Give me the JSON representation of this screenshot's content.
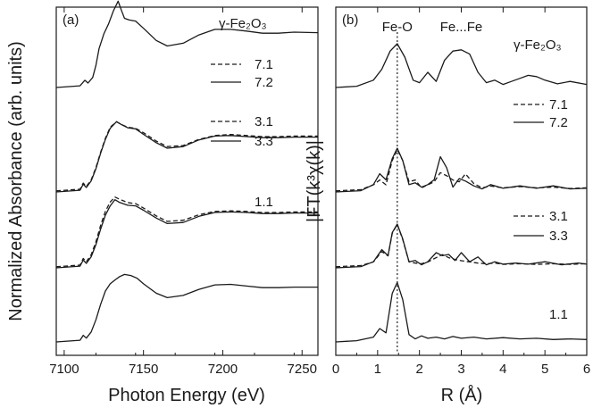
{
  "chart_data": [
    {
      "panel_label": "(a)",
      "type": "line",
      "xlabel": "Photon Energy (eV)",
      "ylabel": "Normalized Absorbance (arb. units)",
      "xlim": [
        7095,
        7260
      ],
      "xticks": [
        7100,
        7150,
        7200,
        7250
      ],
      "y_ticks_shown": false,
      "grid": false,
      "legend_entries": [
        {
          "label": "γ-Fe₂O₃",
          "style": "solid",
          "sample": "reference"
        },
        {
          "label": "7.1",
          "style": "dashed"
        },
        {
          "label": "7.2",
          "style": "solid"
        },
        {
          "label": "3.1",
          "style": "dashed"
        },
        {
          "label": "3.3",
          "style": "solid"
        },
        {
          "label": "1.1",
          "style": "solid"
        }
      ],
      "series": [
        {
          "name": "γ-Fe₂O₃",
          "style": "solid",
          "offset": 3.0,
          "x": [
            7095,
            7110,
            7113,
            7115,
            7118,
            7120,
            7122,
            7125,
            7128,
            7131,
            7134,
            7136,
            7138,
            7141,
            7145,
            7150,
            7158,
            7165,
            7175,
            7185,
            7195,
            7205,
            7215,
            7225,
            7235,
            7245,
            7260
          ],
          "y": [
            0.0,
            0.03,
            0.13,
            0.08,
            0.18,
            0.4,
            0.7,
            0.97,
            1.15,
            1.38,
            1.56,
            1.4,
            1.25,
            1.22,
            1.2,
            1.07,
            0.85,
            0.75,
            0.8,
            0.95,
            1.05,
            1.05,
            1.02,
            0.98,
            0.98,
            1.0,
            0.99
          ]
        },
        {
          "name": "7.1",
          "style": "dashed",
          "offset": 2.03,
          "x": [
            7095,
            7110,
            7112,
            7114,
            7117,
            7120,
            7123,
            7126,
            7129,
            7133,
            7136,
            7140,
            7145,
            7150,
            7158,
            7165,
            7175,
            7185,
            7195,
            7205,
            7215,
            7225,
            7235,
            7245,
            7260
          ],
          "y": [
            0.0,
            0.03,
            0.14,
            0.08,
            0.2,
            0.42,
            0.7,
            0.95,
            1.15,
            1.25,
            1.2,
            1.15,
            1.13,
            1.05,
            0.9,
            0.8,
            0.82,
            0.93,
            1.0,
            1.02,
            1.0,
            0.98,
            0.98,
            0.99,
            0.99
          ]
        },
        {
          "name": "7.2",
          "style": "solid",
          "offset": 2.0,
          "x": [
            7095,
            7110,
            7112,
            7114,
            7117,
            7120,
            7123,
            7126,
            7129,
            7133,
            7136,
            7140,
            7145,
            7150,
            7158,
            7165,
            7175,
            7185,
            7195,
            7205,
            7215,
            7225,
            7235,
            7245,
            7260
          ],
          "y": [
            0.0,
            0.03,
            0.14,
            0.08,
            0.2,
            0.42,
            0.7,
            0.95,
            1.15,
            1.27,
            1.22,
            1.16,
            1.14,
            1.04,
            0.89,
            0.79,
            0.82,
            0.94,
            1.01,
            1.02,
            1.0,
            0.98,
            0.98,
            0.99,
            0.99
          ]
        },
        {
          "name": "3.1",
          "style": "dashed",
          "offset": 1.03,
          "x": [
            7095,
            7110,
            7112,
            7114,
            7117,
            7120,
            7123,
            7126,
            7129,
            7132,
            7135,
            7140,
            7145,
            7150,
            7158,
            7165,
            7175,
            7185,
            7195,
            7205,
            7215,
            7225,
            7235,
            7245,
            7260
          ],
          "y": [
            0.0,
            0.03,
            0.15,
            0.09,
            0.22,
            0.45,
            0.75,
            1.0,
            1.17,
            1.26,
            1.22,
            1.16,
            1.14,
            1.06,
            0.92,
            0.82,
            0.84,
            0.94,
            1.0,
            1.01,
            1.0,
            0.98,
            0.98,
            0.99,
            0.99
          ]
        },
        {
          "name": "3.3",
          "style": "solid",
          "offset": 1.0,
          "x": [
            7095,
            7110,
            7112,
            7114,
            7117,
            7120,
            7123,
            7126,
            7129,
            7132,
            7135,
            7140,
            7145,
            7150,
            7158,
            7165,
            7175,
            7185,
            7195,
            7205,
            7215,
            7225,
            7235,
            7245,
            7260
          ],
          "y": [
            0.0,
            0.03,
            0.14,
            0.08,
            0.2,
            0.42,
            0.7,
            0.95,
            1.12,
            1.23,
            1.18,
            1.13,
            1.12,
            1.04,
            0.9,
            0.8,
            0.82,
            0.93,
            1.0,
            1.01,
            1.0,
            0.98,
            0.98,
            0.99,
            0.99
          ]
        },
        {
          "name": "1.1",
          "style": "solid",
          "offset": 0.0,
          "x": [
            7095,
            7110,
            7112,
            7114,
            7117,
            7120,
            7123,
            7126,
            7129,
            7132,
            7135,
            7138,
            7142,
            7146,
            7150,
            7158,
            7165,
            7175,
            7185,
            7195,
            7205,
            7215,
            7225,
            7235,
            7245,
            7260
          ],
          "y": [
            0.0,
            0.03,
            0.12,
            0.07,
            0.18,
            0.4,
            0.68,
            0.92,
            1.05,
            1.12,
            1.18,
            1.22,
            1.2,
            1.15,
            1.05,
            0.88,
            0.8,
            0.84,
            0.95,
            1.03,
            1.04,
            1.01,
            0.98,
            0.98,
            0.99,
            0.99
          ]
        }
      ]
    },
    {
      "panel_label": "(b)",
      "type": "line",
      "xlabel": "R (Å)",
      "ylabel": "|FT(k³χ(k)|",
      "xlim": [
        0,
        6
      ],
      "xticks": [
        0,
        1,
        2,
        3,
        4,
        5,
        6
      ],
      "xtick_minor_step": 0.5,
      "y_ticks_shown": false,
      "grid": false,
      "annotations": [
        {
          "text": "Fe-O",
          "x": 1.47
        },
        {
          "text": "Fe...Fe",
          "x": 3.0
        }
      ],
      "vertical_dotted_line_x": 1.47,
      "legend_entries": [
        {
          "label": "γ-Fe₂O₃",
          "style": "solid",
          "sample": "reference"
        },
        {
          "label": "7.1",
          "style": "dashed"
        },
        {
          "label": "7.2",
          "style": "solid"
        },
        {
          "label": "3.1",
          "style": "dashed"
        },
        {
          "label": "3.3",
          "style": "solid"
        },
        {
          "label": "1.1",
          "style": "solid"
        }
      ],
      "series": [
        {
          "name": "γ-Fe₂O₃",
          "style": "solid",
          "offset": 3.0,
          "x": [
            0,
            0.5,
            0.9,
            1.1,
            1.3,
            1.47,
            1.65,
            1.85,
            2.0,
            2.2,
            2.4,
            2.6,
            2.8,
            3.0,
            3.2,
            3.4,
            3.6,
            3.8,
            4.0,
            4.2,
            4.4,
            4.6,
            4.8,
            5.0,
            5.3,
            5.6,
            6.0
          ],
          "y": [
            0.0,
            0.02,
            0.12,
            0.3,
            0.6,
            0.72,
            0.5,
            0.12,
            0.08,
            0.25,
            0.1,
            0.45,
            0.6,
            0.62,
            0.55,
            0.25,
            0.08,
            0.12,
            0.05,
            0.1,
            0.15,
            0.2,
            0.18,
            0.12,
            0.06,
            0.1,
            0.05
          ]
        },
        {
          "name": "7.1",
          "style": "dashed",
          "offset": 2.03,
          "x": [
            0,
            0.6,
            0.9,
            1.05,
            1.2,
            1.35,
            1.47,
            1.6,
            1.75,
            1.9,
            2.05,
            2.2,
            2.35,
            2.5,
            2.65,
            2.8,
            2.95,
            3.1,
            3.3,
            3.5,
            3.7,
            4.0,
            4.4,
            4.8,
            5.2,
            5.6,
            6.0
          ],
          "y": [
            0.0,
            0.02,
            0.1,
            0.18,
            0.1,
            0.5,
            0.68,
            0.5,
            0.15,
            0.18,
            0.05,
            0.1,
            0.15,
            0.3,
            0.25,
            0.18,
            0.15,
            0.28,
            0.12,
            0.05,
            0.08,
            0.05,
            0.07,
            0.05,
            0.06,
            0.04,
            0.05
          ]
        },
        {
          "name": "7.2",
          "style": "solid",
          "offset": 2.0,
          "x": [
            0,
            0.6,
            0.9,
            1.05,
            1.2,
            1.35,
            1.47,
            1.6,
            1.75,
            1.9,
            2.05,
            2.2,
            2.35,
            2.5,
            2.65,
            2.8,
            2.95,
            3.1,
            3.3,
            3.5,
            3.7,
            4.0,
            4.4,
            4.8,
            5.2,
            5.6,
            6.0
          ],
          "y": [
            0.0,
            0.02,
            0.12,
            0.3,
            0.2,
            0.55,
            0.72,
            0.52,
            0.12,
            0.15,
            0.08,
            0.12,
            0.2,
            0.58,
            0.4,
            0.08,
            0.22,
            0.18,
            0.1,
            0.05,
            0.12,
            0.06,
            0.1,
            0.06,
            0.1,
            0.05,
            0.06
          ]
        },
        {
          "name": "3.1",
          "style": "dashed",
          "offset": 1.03,
          "x": [
            0,
            0.6,
            0.9,
            1.1,
            1.25,
            1.35,
            1.47,
            1.6,
            1.75,
            1.9,
            2.05,
            2.2,
            2.4,
            2.55,
            2.7,
            2.85,
            3.0,
            3.2,
            3.4,
            3.6,
            3.8,
            4.0,
            4.4,
            4.8,
            5.2,
            5.6,
            6.0
          ],
          "y": [
            0.0,
            0.02,
            0.08,
            0.25,
            0.18,
            0.55,
            0.7,
            0.45,
            0.08,
            0.06,
            0.05,
            0.08,
            0.15,
            0.2,
            0.15,
            0.12,
            0.1,
            0.08,
            0.06,
            0.05,
            0.06,
            0.04,
            0.05,
            0.04,
            0.05,
            0.04,
            0.05
          ]
        },
        {
          "name": "3.3",
          "style": "solid",
          "offset": 1.0,
          "x": [
            0,
            0.6,
            0.9,
            1.1,
            1.25,
            1.35,
            1.47,
            1.6,
            1.75,
            1.9,
            2.05,
            2.2,
            2.4,
            2.55,
            2.7,
            2.85,
            3.0,
            3.2,
            3.4,
            3.6,
            3.8,
            4.0,
            4.3,
            4.6,
            5.0,
            5.4,
            5.8,
            6.0
          ],
          "y": [
            0.0,
            0.02,
            0.1,
            0.3,
            0.2,
            0.58,
            0.72,
            0.48,
            0.1,
            0.12,
            0.05,
            0.1,
            0.25,
            0.2,
            0.22,
            0.12,
            0.25,
            0.1,
            0.18,
            0.05,
            0.1,
            0.06,
            0.08,
            0.06,
            0.1,
            0.05,
            0.08,
            0.06
          ]
        },
        {
          "name": "1.1",
          "style": "solid",
          "offset": 0.0,
          "x": [
            0,
            0.5,
            0.9,
            1.05,
            1.2,
            1.35,
            1.47,
            1.6,
            1.75,
            1.9,
            2.05,
            2.2,
            2.4,
            2.6,
            2.8,
            3.0,
            3.3,
            3.6,
            4.0,
            4.4,
            4.8,
            5.2,
            5.6,
            6.0
          ],
          "y": [
            0.0,
            0.02,
            0.08,
            0.22,
            0.15,
            0.8,
            0.98,
            0.7,
            0.12,
            0.05,
            0.1,
            0.06,
            0.08,
            0.05,
            0.09,
            0.06,
            0.08,
            0.05,
            0.07,
            0.05,
            0.06,
            0.04,
            0.05,
            0.04
          ]
        }
      ]
    }
  ]
}
